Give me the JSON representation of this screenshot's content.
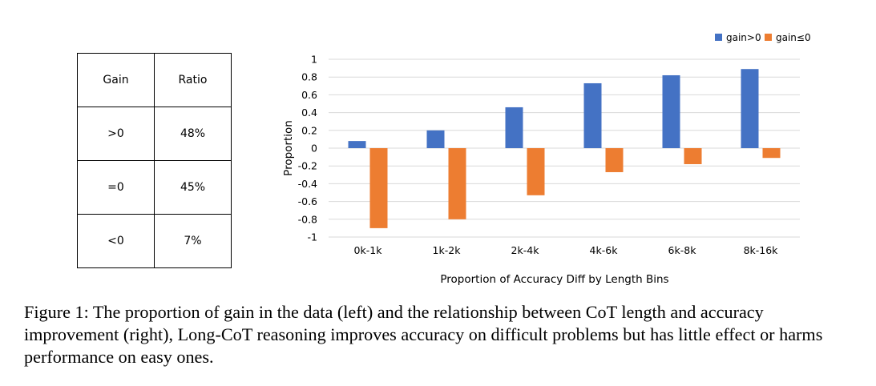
{
  "table": {
    "headers": [
      "Gain",
      "Ratio"
    ],
    "rows": [
      {
        "gain": ">0",
        "ratio": "48%"
      },
      {
        "gain": "=0",
        "ratio": "45%"
      },
      {
        "gain": "<0",
        "ratio": "7%"
      }
    ]
  },
  "chart_data": {
    "type": "bar",
    "categories": [
      "0k-1k",
      "1k-2k",
      "2k-4k",
      "4k-6k",
      "6k-8k",
      "8k-16k"
    ],
    "series": [
      {
        "name": "gain>0",
        "color": "#4472C4",
        "values": [
          0.08,
          0.2,
          0.46,
          0.73,
          0.82,
          0.89
        ]
      },
      {
        "name": "gain≤0",
        "color": "#ED7D31",
        "values": [
          -0.9,
          -0.8,
          -0.53,
          -0.27,
          -0.18,
          -0.11
        ]
      }
    ],
    "xlabel": "Proportion of Accuracy Diff by Length Bins",
    "ylabel": "Proportion",
    "ylim": [
      -1,
      1
    ],
    "yticks": [
      "1",
      "0.8",
      "0.6",
      "0.4",
      "0.2",
      "0",
      "-0.2",
      "-0.4",
      "-0.6",
      "-0.8",
      "-1"
    ],
    "grid": true,
    "legend_position": "top-right"
  },
  "caption": "Figure 1: The proportion of gain in the data (left) and the relationship between CoT length and accuracy improvement (right), Long-CoT reasoning improves accuracy on difficult problems but has little effect or harms performance on easy ones."
}
